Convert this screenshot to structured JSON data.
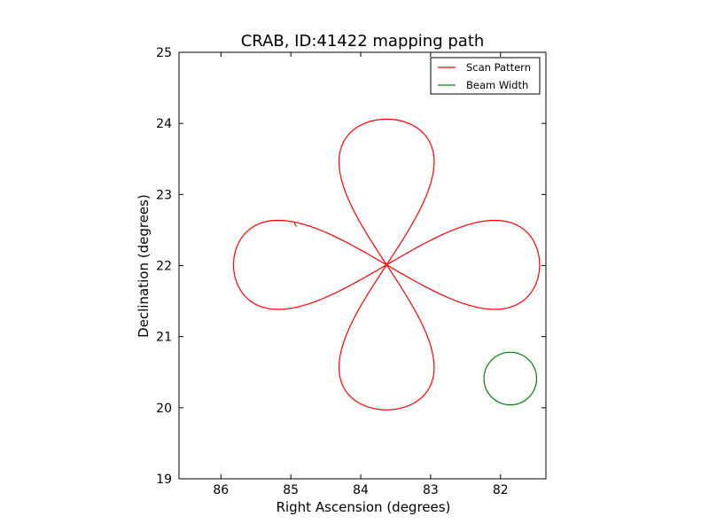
{
  "chart_data": {
    "type": "line",
    "title": "CRAB, ID:41422 mapping path",
    "xlabel": "Right Ascension (degrees)",
    "ylabel": "Declination (degrees)",
    "xlim": [
      86.6,
      81.35
    ],
    "ylim": [
      19,
      25
    ],
    "x_reversed": true,
    "xticks": [
      86,
      85,
      84,
      83,
      82
    ],
    "yticks": [
      19,
      20,
      21,
      22,
      23,
      24,
      25
    ],
    "grid": false,
    "legend": {
      "position": "top-right"
    },
    "center": {
      "ra": 83.63,
      "dec": 22.01
    },
    "series": [
      {
        "name": "Scan Pattern",
        "kind": "rose-path",
        "color": "#ff0000",
        "petals": [
          {
            "direction": "up",
            "extent_deg": 2.05,
            "half_width_deg": 0.63
          },
          {
            "direction": "down",
            "extent_deg": 2.04,
            "half_width_deg": 0.63
          },
          {
            "direction": "left",
            "extent_deg": 2.19,
            "half_width_deg": 0.58
          },
          {
            "direction": "right",
            "extent_deg": 2.19,
            "half_width_deg": 0.58
          }
        ],
        "start": {
          "ra": 84.92,
          "dec": 22.55
        },
        "end": {
          "ra": 84.95,
          "dec": 22.6
        }
      },
      {
        "name": "Beam Width",
        "kind": "circle",
        "color": "#008000",
        "center": {
          "ra": 81.86,
          "dec": 20.41
        },
        "radius_deg": 0.37
      }
    ]
  }
}
